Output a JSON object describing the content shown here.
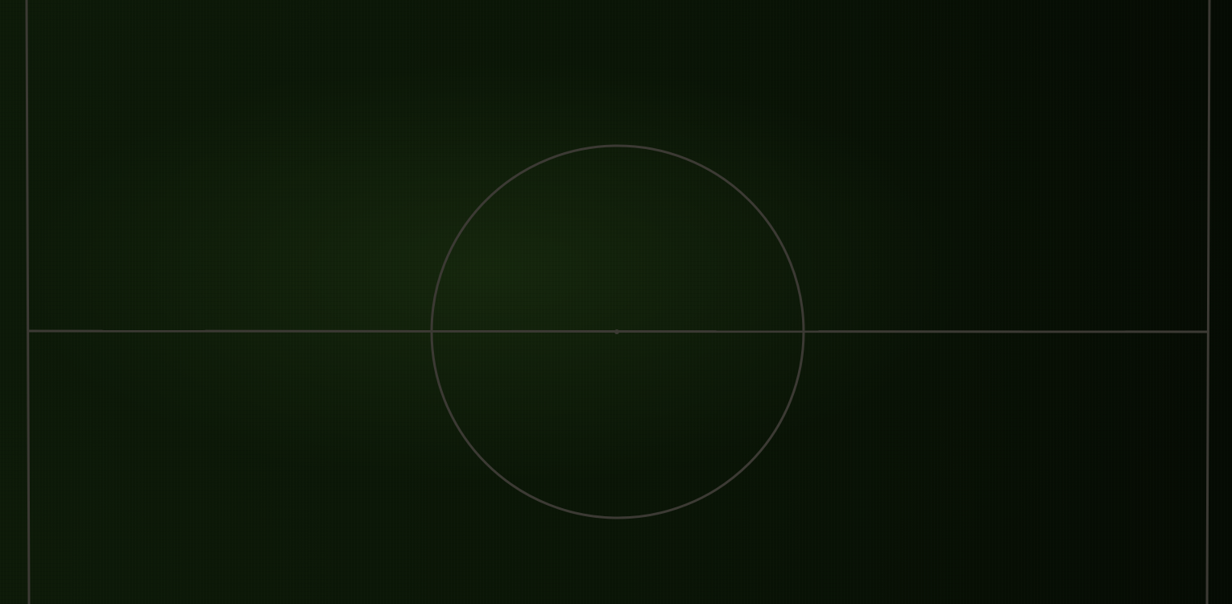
{
  "scene": {
    "kind": "football-pitch",
    "colors": {
      "grass_dark": "#040a03",
      "grass_mid": "#0d1a08",
      "line": "#3c3a34"
    }
  }
}
